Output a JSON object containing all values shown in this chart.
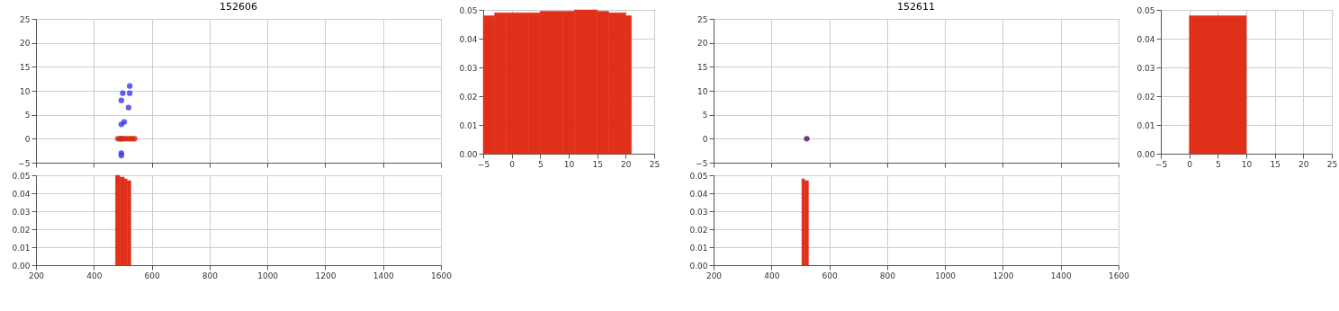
{
  "chart_data": [
    {
      "type": "scatter",
      "title": "152606",
      "xlim": [
        200,
        1600
      ],
      "xticks": [
        200,
        400,
        600,
        800,
        1000,
        1200,
        1400,
        1600
      ],
      "ylim": [
        -5,
        25
      ],
      "yticks": [
        -5,
        0,
        5,
        10,
        15,
        20,
        25
      ],
      "tick_labels": "y",
      "grid": true,
      "marker": "circle",
      "series": [
        {
          "color": "#3a3ae8",
          "x": [
            524,
            524,
            500,
            495,
            520,
            505,
            495,
            495,
            495,
            495
          ],
          "values": [
            11,
            9.5,
            9.5,
            8,
            6.5,
            3.5,
            3,
            -3,
            -3.5,
            0
          ]
        },
        {
          "color": "#d42a12",
          "x": [
            483,
            490,
            497,
            505,
            512,
            520,
            527,
            534,
            541
          ],
          "values": [
            0,
            0,
            0,
            0,
            0,
            0,
            0,
            0,
            0
          ]
        }
      ]
    },
    {
      "type": "histogram",
      "xlim": [
        -5,
        25
      ],
      "xticks": [
        -5,
        0,
        5,
        10,
        15,
        20,
        25
      ],
      "ylim": [
        0,
        0.05
      ],
      "yticks": [
        {
          "value": 0,
          "label": "0.00"
        },
        {
          "value": 0.01,
          "label": "0.01"
        },
        {
          "value": 0.02,
          "label": "0.02"
        },
        {
          "value": 0.03,
          "label": "0.03"
        },
        {
          "value": 0.04,
          "label": "0.04"
        },
        {
          "value": 0.05,
          "label": "0.05"
        }
      ],
      "grid": true,
      "color": "#e0301a",
      "bins": [
        -5,
        -3,
        -1,
        1,
        3,
        5,
        7,
        9,
        11,
        13,
        15,
        17,
        19,
        20,
        21
      ],
      "values": [
        0.048,
        0.049,
        0.049,
        0.049,
        0.049,
        0.0495,
        0.0495,
        0.0495,
        0.05,
        0.05,
        0.0495,
        0.049,
        0.049,
        0.048
      ]
    },
    {
      "type": "histogram",
      "xlim": [
        200,
        1600
      ],
      "xticks": [
        200,
        400,
        600,
        800,
        1000,
        1200,
        1400,
        1600
      ],
      "ylim": [
        0,
        0.05
      ],
      "yticks": [
        {
          "value": 0,
          "label": "0.00"
        },
        {
          "value": 0.01,
          "label": "0.01"
        },
        {
          "value": 0.02,
          "label": "0.02"
        },
        {
          "value": 0.03,
          "label": "0.03"
        },
        {
          "value": 0.04,
          "label": "0.04"
        },
        {
          "value": 0.05,
          "label": "0.05"
        }
      ],
      "grid": true,
      "color": "#e0301a",
      "bins": [
        475,
        490,
        505,
        515,
        528
      ],
      "values": [
        0.05,
        0.049,
        0.048,
        0.047
      ]
    },
    {
      "type": "scatter",
      "title": "152611",
      "xlim": [
        200,
        1600
      ],
      "xticks": [
        200,
        400,
        600,
        800,
        1000,
        1200,
        1400,
        1600
      ],
      "ylim": [
        -5,
        25
      ],
      "yticks": [
        -5,
        0,
        5,
        10,
        15,
        20,
        25
      ],
      "tick_labels": "y",
      "grid": true,
      "marker": "circle",
      "series": [
        {
          "color": "#4a1070",
          "x": [
            522
          ],
          "values": [
            0
          ]
        }
      ]
    },
    {
      "type": "histogram",
      "xlim": [
        -5,
        25
      ],
      "xticks": [
        -5,
        0,
        5,
        10,
        15,
        20,
        25
      ],
      "ylim": [
        0,
        0.05
      ],
      "yticks": [
        {
          "value": 0,
          "label": "0.00"
        },
        {
          "value": 0.01,
          "label": "0.01"
        },
        {
          "value": 0.02,
          "label": "0.02"
        },
        {
          "value": 0.03,
          "label": "0.03"
        },
        {
          "value": 0.04,
          "label": "0.04"
        },
        {
          "value": 0.05,
          "label": "0.05"
        }
      ],
      "grid": true,
      "color": "#e0301a",
      "bins": [
        0,
        10
      ],
      "values": [
        0.048
      ]
    },
    {
      "type": "histogram",
      "xlim": [
        200,
        1600
      ],
      "xticks": [
        200,
        400,
        600,
        800,
        1000,
        1200,
        1400,
        1600
      ],
      "ylim": [
        0,
        0.05
      ],
      "yticks": [
        {
          "value": 0,
          "label": "0.00"
        },
        {
          "value": 0.01,
          "label": "0.01"
        },
        {
          "value": 0.02,
          "label": "0.02"
        },
        {
          "value": 0.03,
          "label": "0.03"
        },
        {
          "value": 0.04,
          "label": "0.04"
        },
        {
          "value": 0.05,
          "label": "0.05"
        }
      ],
      "grid": true,
      "color": "#e0301a",
      "bins": [
        505,
        515,
        528
      ],
      "values": [
        0.048,
        0.047
      ]
    }
  ]
}
